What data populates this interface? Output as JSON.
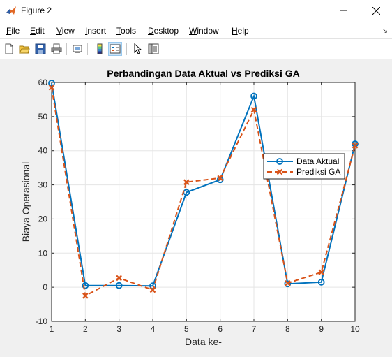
{
  "window": {
    "title": "Figure 2"
  },
  "menu": [
    "File",
    "Edit",
    "View",
    "Insert",
    "Tools",
    "Desktop",
    "Window",
    "Help"
  ],
  "menu_mnemonic_index": [
    0,
    0,
    0,
    0,
    0,
    0,
    0,
    0
  ],
  "toolbar": {
    "icons": [
      "new-figure-icon",
      "open-file-icon",
      "save-icon",
      "print-icon",
      "link-plot-icon",
      "colorbar-icon",
      "legend-icon",
      "edit-plot-icon",
      "property-inspector-icon"
    ]
  },
  "colors": {
    "series1": "#0072bd",
    "series2": "#d95319",
    "grid": "#e5e5e5"
  },
  "chart_data": {
    "type": "line",
    "title": "Perbandingan Data Aktual vs Prediksi GA",
    "xlabel": "Data ke-",
    "ylabel": "Biaya Operasional",
    "xlim": [
      1,
      10
    ],
    "ylim": [
      -10,
      60
    ],
    "xticks": [
      "1",
      "2",
      "3",
      "4",
      "5",
      "6",
      "7",
      "8",
      "9",
      "10"
    ],
    "yticks": [
      "-10",
      "0",
      "10",
      "20",
      "30",
      "40",
      "50",
      "60"
    ],
    "x": [
      1,
      2,
      3,
      4,
      5,
      6,
      7,
      8,
      9,
      10
    ],
    "grid": true,
    "legend_position": "right",
    "series": [
      {
        "name": "Data Aktual",
        "values": [
          59.8,
          0.5,
          0.5,
          0.4,
          27.8,
          31.5,
          56.0,
          1.0,
          1.5,
          42.0
        ],
        "style": "solid",
        "marker": "circle"
      },
      {
        "name": "Prediksi GA",
        "values": [
          58.5,
          -2.5,
          2.7,
          -0.8,
          30.8,
          32.0,
          52.0,
          1.2,
          4.4,
          41.5
        ],
        "style": "dashed",
        "marker": "x"
      }
    ]
  }
}
